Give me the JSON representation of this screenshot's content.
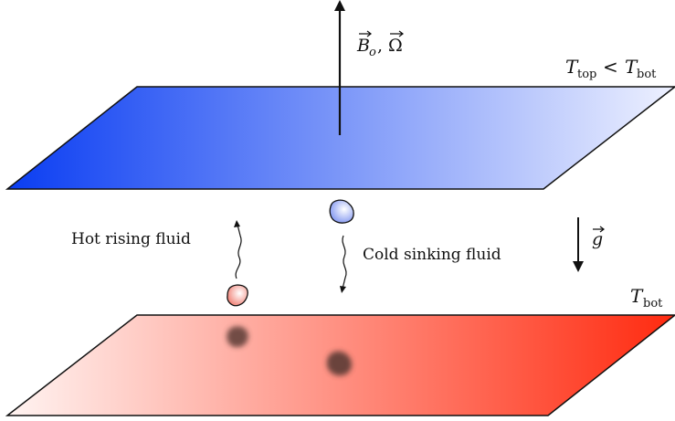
{
  "labels": {
    "field_B": "B",
    "field_B_sub": "o",
    "field_sep": ",",
    "field_Omega": "Ω",
    "top_T": "T",
    "top_T_sub": "top",
    "top_lt": "<",
    "top_T2": "T",
    "top_T2_sub": "bot",
    "bottom_T": "T",
    "bottom_T_sub": "bot",
    "gravity": "g",
    "hot_fluid": "Hot rising fluid",
    "cold_fluid": "Cold sinking fluid"
  },
  "colors": {
    "cold_deep": "#0a3df2",
    "cold_light": "#eef1ff",
    "hot_light": "#fff4f2",
    "hot_deep": "#ff2a0f",
    "blob_hot": "#f07a6e",
    "blob_cold": "#7a90f0",
    "shadow": "#5a3a36"
  }
}
